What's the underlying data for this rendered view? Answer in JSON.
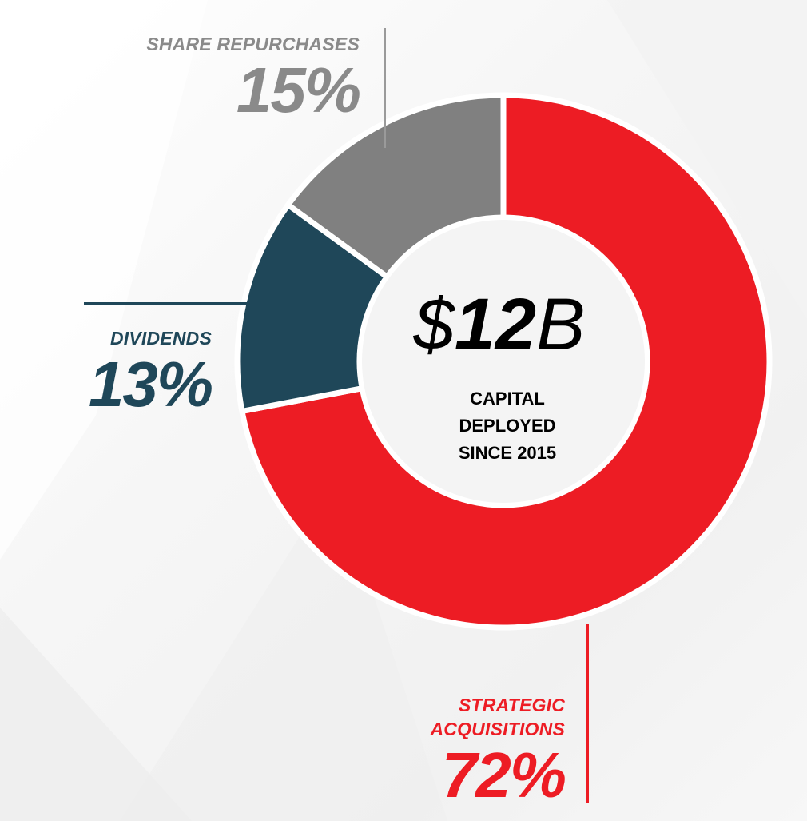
{
  "chart_data": {
    "type": "pie",
    "title": "",
    "center_value": "$12B",
    "center_caption": [
      "CAPITAL",
      "DEPLOYED",
      "SINCE 2015"
    ],
    "slices": [
      {
        "name": "STRATEGIC ACQUISITIONS",
        "label_lines": [
          "STRATEGIC",
          "ACQUISITIONS"
        ],
        "value": 72,
        "label": "72%",
        "color": "#ed1c24"
      },
      {
        "name": "DIVIDENDS",
        "label_lines": [
          "DIVIDENDS"
        ],
        "value": 13,
        "label": "13%",
        "color": "#1f4759"
      },
      {
        "name": "SHARE REPURCHASES",
        "label_lines": [
          "SHARE REPURCHASES"
        ],
        "value": 15,
        "label": "15%",
        "color": "#808080"
      }
    ],
    "label_colors": {
      "STRATEGIC ACQUISITIONS": "#ed1c24",
      "DIVIDENDS": "#1f4759",
      "SHARE REPURCHASES": "#8a8a8a"
    }
  }
}
